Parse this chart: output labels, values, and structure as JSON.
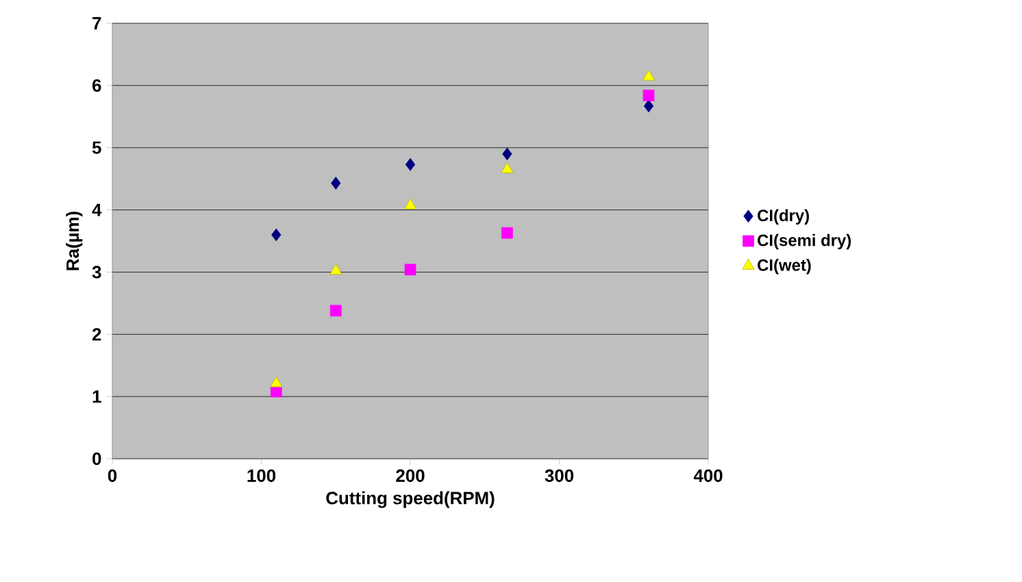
{
  "chart_data": {
    "type": "scatter",
    "xlabel": "Cutting speed(RPM)",
    "ylabel": "Ra(µm)",
    "x": [
      110,
      150,
      200,
      265,
      360
    ],
    "series": [
      {
        "name": "CI(dry)",
        "color": "#000080",
        "marker": "diamond",
        "values": [
          3.6,
          4.43,
          4.73,
          4.9,
          5.67
        ]
      },
      {
        "name": "CI(semi dry)",
        "color": "#ff00ff",
        "marker": "square",
        "values": [
          1.08,
          2.38,
          3.04,
          3.63,
          5.84
        ]
      },
      {
        "name": "CI(wet)",
        "color": "#ffff00",
        "marker": "triangle",
        "values": [
          1.21,
          3.02,
          4.07,
          4.65,
          6.14
        ]
      }
    ],
    "xlim": [
      0,
      400
    ],
    "ylim": [
      0,
      7
    ],
    "xticks": [
      0,
      100,
      200,
      300,
      400
    ],
    "yticks": [
      0,
      1,
      2,
      3,
      4,
      5,
      6,
      7
    ],
    "grid": "y",
    "legend": "right"
  }
}
